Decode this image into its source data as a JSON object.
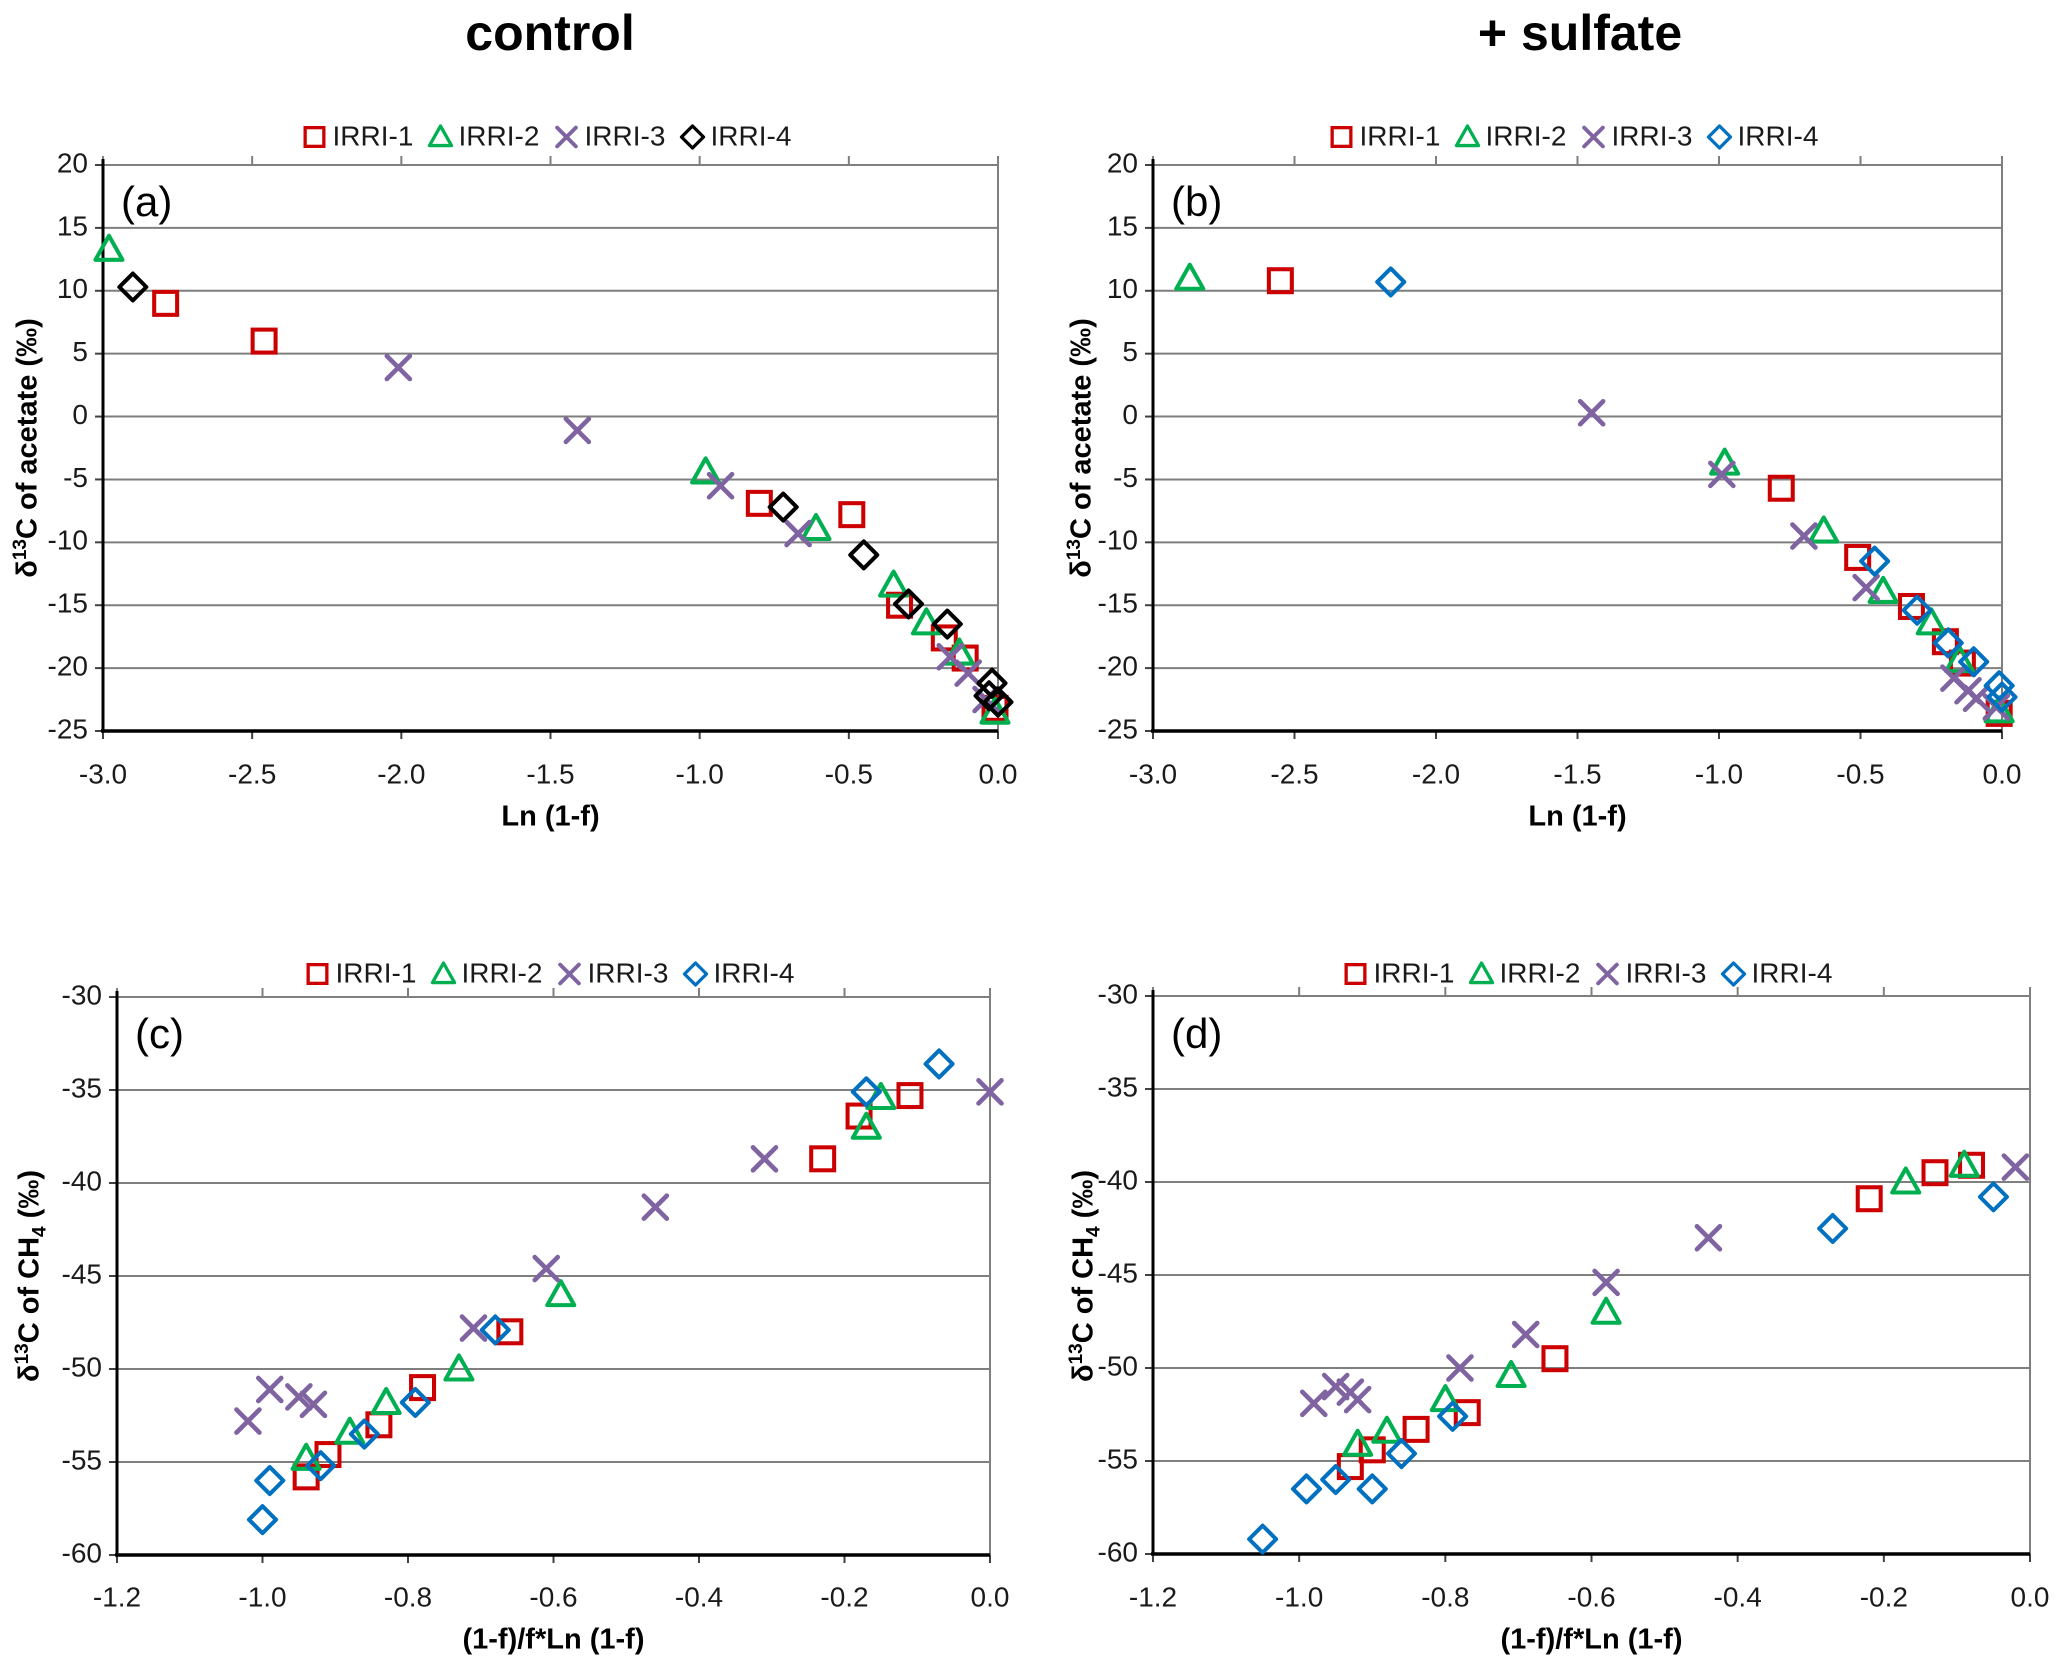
{
  "titles": {
    "left": "control",
    "right": "+ sulfate"
  },
  "legend_labels": [
    "IRRI-1",
    "IRRI-2",
    "IRRI-3",
    "IRRI-4"
  ],
  "colors": {
    "irri1_red": "#CC0000",
    "irri2_green": "#00B050",
    "irri3_purple": "#8064A2",
    "irri4_black": "#000000",
    "irri4_blue": "#0070C0",
    "gridline": "#7F7F7F",
    "axis": "#000000",
    "tick_text": "#1a1a1a"
  },
  "chart_data": [
    {
      "id": "a",
      "panel_label": "(a)",
      "type": "scatter",
      "group": "control",
      "xlabel": "Ln (1-f)",
      "ylabel_parts": [
        {
          "t": "δ"
        },
        {
          "t": "13",
          "style": "sup"
        },
        {
          "t": "C of acetate (‰)"
        }
      ],
      "xlim": [
        -3,
        0
      ],
      "ylim": [
        -25,
        20
      ],
      "xtick_values": [
        -3,
        -2.5,
        -2,
        -1.5,
        -1,
        -0.5,
        0
      ],
      "xtick_labels": [
        "-3.0",
        "-2.5",
        "-2.0",
        "-1.5",
        "-1.0",
        "-0.5",
        "0.0"
      ],
      "ytick_values": [
        20,
        15,
        10,
        5,
        0,
        -5,
        -10,
        -15,
        -20,
        -25
      ],
      "ytick_labels": [
        "20",
        "15",
        "10",
        "5",
        "0",
        "-5",
        "-10",
        "-15",
        "-20",
        "-25"
      ],
      "grid": true,
      "legend_position": "top",
      "series": [
        {
          "name": "IRRI-1",
          "marker": "square",
          "color": "#CC0000",
          "points": [
            [
              -2.79,
              9.0
            ],
            [
              -2.46,
              6.0
            ],
            [
              -0.8,
              -6.9
            ],
            [
              -0.49,
              -7.8
            ],
            [
              -0.33,
              -15.0
            ],
            [
              -0.18,
              -17.6
            ],
            [
              -0.11,
              -19.2
            ],
            [
              -0.01,
              -23.2
            ]
          ]
        },
        {
          "name": "IRRI-2",
          "marker": "triangle",
          "color": "#00B050",
          "points": [
            [
              -2.98,
              13.3
            ],
            [
              -0.98,
              -4.4
            ],
            [
              -0.61,
              -8.9
            ],
            [
              -0.35,
              -13.4
            ],
            [
              -0.24,
              -16.4
            ],
            [
              -0.13,
              -18.8
            ],
            [
              -0.01,
              -23.5
            ]
          ]
        },
        {
          "name": "IRRI-3",
          "marker": "x",
          "color": "#8064A2",
          "points": [
            [
              -2.01,
              3.9
            ],
            [
              -1.41,
              -1.1
            ],
            [
              -0.93,
              -5.5
            ],
            [
              -0.67,
              -9.3
            ],
            [
              -0.16,
              -19.1
            ],
            [
              -0.1,
              -20.4
            ],
            [
              -0.04,
              -22.5
            ]
          ]
        },
        {
          "name": "IRRI-4",
          "marker": "diamond",
          "color": "#000000",
          "points": [
            [
              -2.9,
              10.3
            ],
            [
              -0.72,
              -7.2
            ],
            [
              -0.45,
              -11.0
            ],
            [
              -0.3,
              -14.9
            ],
            [
              -0.17,
              -16.5
            ],
            [
              -0.02,
              -21.2
            ],
            [
              -0.03,
              -22.2
            ],
            [
              0.0,
              -22.7
            ]
          ]
        }
      ]
    },
    {
      "id": "b",
      "panel_label": "(b)",
      "type": "scatter",
      "group": "+ sulfate",
      "xlabel": "Ln (1-f)",
      "ylabel_parts": [
        {
          "t": "δ"
        },
        {
          "t": "13",
          "style": "sup"
        },
        {
          "t": "C of acetate (‰)"
        }
      ],
      "xlim": [
        -3,
        0
      ],
      "ylim": [
        -25,
        20
      ],
      "xtick_values": [
        -3,
        -2.5,
        -2,
        -1.5,
        -1,
        -0.5,
        0
      ],
      "xtick_labels": [
        "-3.0",
        "-2.5",
        "-2.0",
        "-1.5",
        "-1.0",
        "-0.5",
        "0.0"
      ],
      "ytick_values": [
        20,
        15,
        10,
        5,
        0,
        -5,
        -10,
        -15,
        -20,
        -25
      ],
      "ytick_labels": [
        "20",
        "15",
        "10",
        "5",
        "0",
        "-5",
        "-10",
        "-15",
        "-20",
        "-25"
      ],
      "grid": true,
      "legend_position": "top",
      "series": [
        {
          "name": "IRRI-1",
          "marker": "square",
          "color": "#CC0000",
          "points": [
            [
              -2.55,
              10.8
            ],
            [
              -0.78,
              -5.7
            ],
            [
              -0.51,
              -11.2
            ],
            [
              -0.32,
              -15.1
            ],
            [
              -0.2,
              -17.9
            ],
            [
              -0.14,
              -19.6
            ],
            [
              -0.01,
              -23.6
            ]
          ]
        },
        {
          "name": "IRRI-2",
          "marker": "triangle",
          "color": "#00B050",
          "points": [
            [
              -2.87,
              11.0
            ],
            [
              -0.98,
              -3.7
            ],
            [
              -0.63,
              -9.1
            ],
            [
              -0.42,
              -13.9
            ],
            [
              -0.25,
              -16.4
            ],
            [
              -0.15,
              -19.4
            ],
            [
              -0.01,
              -23.4
            ]
          ]
        },
        {
          "name": "IRRI-3",
          "marker": "x",
          "color": "#8064A2",
          "points": [
            [
              -1.45,
              0.3
            ],
            [
              -0.99,
              -4.6
            ],
            [
              -0.7,
              -9.5
            ],
            [
              -0.48,
              -13.6
            ],
            [
              -0.17,
              -20.8
            ],
            [
              -0.12,
              -21.8
            ],
            [
              -0.09,
              -22.4
            ],
            [
              -0.02,
              -23.1
            ]
          ]
        },
        {
          "name": "IRRI-4",
          "marker": "diamond",
          "color": "#0070C0",
          "points": [
            [
              -2.16,
              10.7
            ],
            [
              -0.45,
              -11.5
            ],
            [
              -0.3,
              -15.4
            ],
            [
              -0.19,
              -18.0
            ],
            [
              -0.1,
              -19.5
            ],
            [
              -0.01,
              -21.4
            ],
            [
              0.0,
              -22.3
            ]
          ]
        }
      ]
    },
    {
      "id": "c",
      "panel_label": "(c)",
      "type": "scatter",
      "group": "control",
      "xlabel": "(1-f)/f*Ln (1-f)",
      "ylabel_parts": [
        {
          "t": "δ"
        },
        {
          "t": "13",
          "style": "sup"
        },
        {
          "t": "C of CH"
        },
        {
          "t": "4",
          "style": "sub"
        },
        {
          "t": " (‰)"
        }
      ],
      "xlim": [
        -1.2,
        0
      ],
      "ylim": [
        -60,
        -30
      ],
      "xtick_values": [
        -1.2,
        -1.0,
        -0.8,
        -0.6,
        -0.4,
        -0.2,
        0
      ],
      "xtick_labels": [
        "-1.2",
        "-1.0",
        "-0.8",
        "-0.6",
        "-0.4",
        "-0.2",
        "0.0"
      ],
      "ytick_values": [
        -30,
        -35,
        -40,
        -45,
        -50,
        -55,
        -60
      ],
      "ytick_labels": [
        "-30",
        "-35",
        "-40",
        "-45",
        "-50",
        "-55",
        "-60"
      ],
      "grid": true,
      "legend_position": "top",
      "series": [
        {
          "name": "IRRI-1",
          "marker": "square",
          "color": "#CC0000",
          "points": [
            [
              -0.94,
              -55.8
            ],
            [
              -0.91,
              -54.6
            ],
            [
              -0.84,
              -53.0
            ],
            [
              -0.78,
              -51.0
            ],
            [
              -0.66,
              -48.0
            ],
            [
              -0.23,
              -38.7
            ],
            [
              -0.18,
              -36.4
            ],
            [
              -0.11,
              -35.3
            ]
          ]
        },
        {
          "name": "IRRI-2",
          "marker": "triangle",
          "color": "#00B050",
          "points": [
            [
              -0.94,
              -54.8
            ],
            [
              -0.88,
              -53.4
            ],
            [
              -0.83,
              -51.8
            ],
            [
              -0.73,
              -50.0
            ],
            [
              -0.59,
              -46.0
            ],
            [
              -0.17,
              -37.0
            ],
            [
              -0.15,
              -35.4
            ]
          ]
        },
        {
          "name": "IRRI-3",
          "marker": "x",
          "color": "#8064A2",
          "points": [
            [
              -1.02,
              -52.8
            ],
            [
              -0.99,
              -51.1
            ],
            [
              -0.95,
              -51.5
            ],
            [
              -0.93,
              -51.9
            ],
            [
              -0.71,
              -47.8
            ],
            [
              -0.61,
              -44.6
            ],
            [
              -0.46,
              -41.3
            ],
            [
              -0.31,
              -38.7
            ],
            [
              0.0,
              -35.1
            ]
          ]
        },
        {
          "name": "IRRI-4",
          "marker": "diamond",
          "color": "#0070C0",
          "points": [
            [
              -1.0,
              -58.1
            ],
            [
              -0.99,
              -56.0
            ],
            [
              -0.92,
              -55.2
            ],
            [
              -0.86,
              -53.5
            ],
            [
              -0.79,
              -51.8
            ],
            [
              -0.68,
              -47.9
            ],
            [
              -0.17,
              -35.1
            ],
            [
              -0.07,
              -33.6
            ]
          ]
        }
      ]
    },
    {
      "id": "d",
      "panel_label": "(d)",
      "type": "scatter",
      "group": "+ sulfate",
      "xlabel": "(1-f)/f*Ln (1-f)",
      "ylabel_parts": [
        {
          "t": "δ"
        },
        {
          "t": "13",
          "style": "sup"
        },
        {
          "t": "C of CH"
        },
        {
          "t": "4",
          "style": "sub"
        },
        {
          "t": " (‰)"
        }
      ],
      "xlim": [
        -1.2,
        0
      ],
      "ylim": [
        -60,
        -30
      ],
      "xtick_values": [
        -1.2,
        -1.0,
        -0.8,
        -0.6,
        -0.4,
        -0.2,
        0
      ],
      "xtick_labels": [
        "-1.2",
        "-1.0",
        "-0.8",
        "-0.6",
        "-0.4",
        "-0.2",
        "0.0"
      ],
      "ytick_values": [
        -30,
        -35,
        -40,
        -45,
        -50,
        -55,
        -60
      ],
      "ytick_labels": [
        "-30",
        "-35",
        "-40",
        "-45",
        "-50",
        "-55",
        "-60"
      ],
      "grid": true,
      "legend_position": "top",
      "series": [
        {
          "name": "IRRI-1",
          "marker": "square",
          "color": "#CC0000",
          "points": [
            [
              -0.93,
              -55.3
            ],
            [
              -0.9,
              -54.4
            ],
            [
              -0.84,
              -53.3
            ],
            [
              -0.77,
              -52.4
            ],
            [
              -0.65,
              -49.5
            ],
            [
              -0.22,
              -40.9
            ],
            [
              -0.13,
              -39.5
            ],
            [
              -0.08,
              -39.1
            ]
          ]
        },
        {
          "name": "IRRI-2",
          "marker": "triangle",
          "color": "#00B050",
          "points": [
            [
              -0.92,
              -54.1
            ],
            [
              -0.88,
              -53.4
            ],
            [
              -0.8,
              -51.7
            ],
            [
              -0.71,
              -50.4
            ],
            [
              -0.58,
              -47.0
            ],
            [
              -0.17,
              -40.0
            ],
            [
              -0.09,
              -39.1
            ]
          ]
        },
        {
          "name": "IRRI-3",
          "marker": "x",
          "color": "#8064A2",
          "points": [
            [
              -0.98,
              -51.9
            ],
            [
              -0.95,
              -51.0
            ],
            [
              -0.93,
              -51.3
            ],
            [
              -0.92,
              -51.7
            ],
            [
              -0.78,
              -50.0
            ],
            [
              -0.69,
              -48.2
            ],
            [
              -0.58,
              -45.4
            ],
            [
              -0.44,
              -43.0
            ],
            [
              -0.02,
              -39.2
            ]
          ]
        },
        {
          "name": "IRRI-4",
          "marker": "diamond",
          "color": "#0070C0",
          "points": [
            [
              -1.05,
              -59.2
            ],
            [
              -0.99,
              -56.5
            ],
            [
              -0.95,
              -56.0
            ],
            [
              -0.9,
              -56.5
            ],
            [
              -0.86,
              -54.6
            ],
            [
              -0.79,
              -52.6
            ],
            [
              -0.27,
              -42.5
            ],
            [
              -0.05,
              -40.8
            ]
          ]
        }
      ]
    }
  ]
}
